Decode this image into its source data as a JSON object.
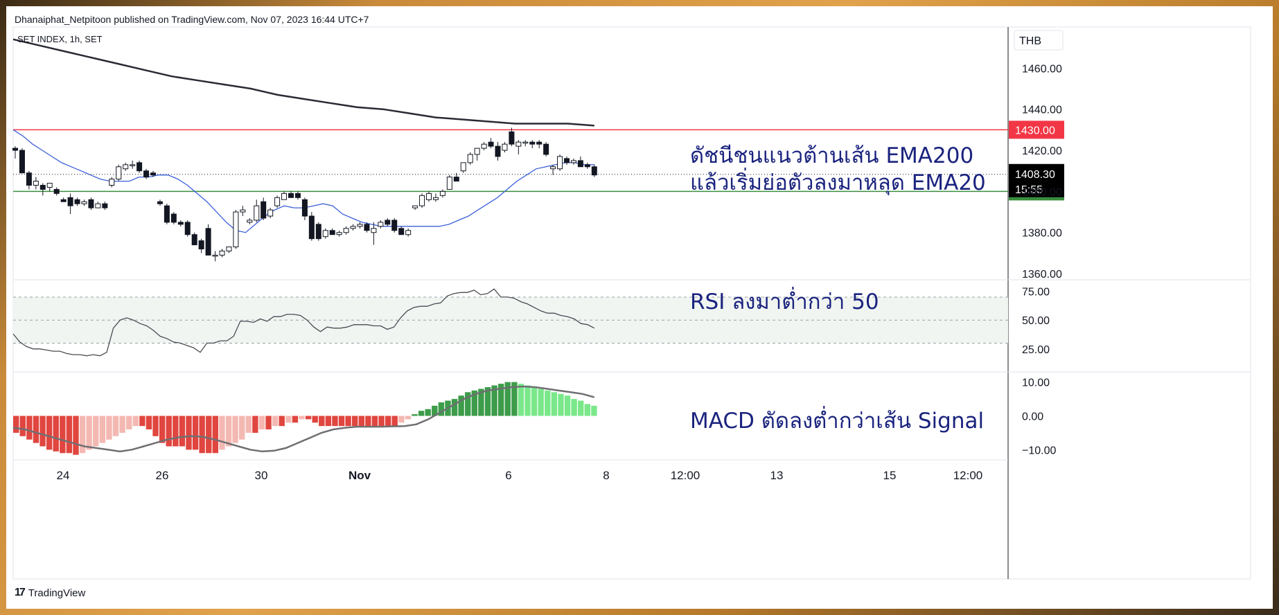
{
  "header": {
    "published": "Dhanaiphat_Netpitoon published on TradingView.com, Nov 07, 2023 16:44 UTC+7"
  },
  "footer": {
    "brand_mark": "17",
    "brand": "TradingView"
  },
  "chart_data": {
    "type": "candlestick",
    "symbol_label": "SET INDEX, 1h, SET",
    "currency": "THB",
    "x_ticks": [
      "24",
      "26",
      "30",
      "Nov",
      "6",
      "8",
      "12:00",
      "13",
      "15",
      "12:00"
    ],
    "price_pane": {
      "ylim": [
        1357,
        1480
      ],
      "y_ticks": [
        "1460.00",
        "1440.00",
        "1420.00",
        "1400.00",
        "1380.00",
        "1360.00"
      ],
      "horizontal_lines": [
        {
          "value": 1430,
          "label": "1430.00",
          "color": "#f23645"
        },
        {
          "value": 1400,
          "label": "1400.00",
          "color": "#388e3c"
        }
      ],
      "last_price": {
        "value": 1408.3,
        "label": "1408.30",
        "countdown": "15:55"
      },
      "candles": [
        {
          "o": 1421,
          "h": 1422,
          "l": 1416,
          "c": 1420
        },
        {
          "o": 1420,
          "h": 1421,
          "l": 1410,
          "c": 1409
        },
        {
          "o": 1409,
          "h": 1410,
          "l": 1401,
          "c": 1403
        },
        {
          "o": 1403,
          "h": 1407,
          "l": 1401,
          "c": 1405
        },
        {
          "o": 1403,
          "h": 1404,
          "l": 1398,
          "c": 1401
        },
        {
          "o": 1402,
          "h": 1404,
          "l": 1400,
          "c": 1404
        },
        {
          "o": 1401,
          "h": 1402,
          "l": 1398,
          "c": 1399
        },
        {
          "o": 1396,
          "h": 1397,
          "l": 1395,
          "c": 1395
        },
        {
          "o": 1397,
          "h": 1399,
          "l": 1389,
          "c": 1393
        },
        {
          "o": 1396,
          "h": 1397,
          "l": 1393,
          "c": 1394
        },
        {
          "o": 1394,
          "h": 1396,
          "l": 1393,
          "c": 1395
        },
        {
          "o": 1396,
          "h": 1397,
          "l": 1391,
          "c": 1392
        },
        {
          "o": 1392,
          "h": 1395,
          "l": 1392,
          "c": 1394
        },
        {
          "o": 1394,
          "h": 1395,
          "l": 1391,
          "c": 1392
        },
        {
          "o": 1403,
          "h": 1407,
          "l": 1402,
          "c": 1406
        },
        {
          "o": 1406,
          "h": 1413,
          "l": 1405,
          "c": 1412
        },
        {
          "o": 1411,
          "h": 1414,
          "l": 1410,
          "c": 1413
        },
        {
          "o": 1413,
          "h": 1415,
          "l": 1411,
          "c": 1413
        },
        {
          "o": 1414,
          "h": 1415,
          "l": 1409,
          "c": 1410
        },
        {
          "o": 1410,
          "h": 1411,
          "l": 1406,
          "c": 1407
        },
        {
          "o": 1409,
          "h": 1410,
          "l": 1407,
          "c": 1408
        },
        {
          "o": 1395,
          "h": 1396,
          "l": 1393,
          "c": 1394
        },
        {
          "o": 1393,
          "h": 1394,
          "l": 1384,
          "c": 1385
        },
        {
          "o": 1389,
          "h": 1390,
          "l": 1384,
          "c": 1385
        },
        {
          "o": 1385,
          "h": 1386,
          "l": 1383,
          "c": 1384
        },
        {
          "o": 1385,
          "h": 1386,
          "l": 1378,
          "c": 1379
        },
        {
          "o": 1379,
          "h": 1380,
          "l": 1374,
          "c": 1374
        },
        {
          "o": 1376,
          "h": 1377,
          "l": 1370,
          "c": 1372
        },
        {
          "o": 1382,
          "h": 1384,
          "l": 1369,
          "c": 1369
        },
        {
          "o": 1369,
          "h": 1371,
          "l": 1366,
          "c": 1369
        },
        {
          "o": 1369,
          "h": 1372,
          "l": 1368,
          "c": 1371
        },
        {
          "o": 1371,
          "h": 1373,
          "l": 1370,
          "c": 1373
        },
        {
          "o": 1373,
          "h": 1391,
          "l": 1372,
          "c": 1390
        },
        {
          "o": 1390,
          "h": 1393,
          "l": 1388,
          "c": 1391
        },
        {
          "o": 1385,
          "h": 1387,
          "l": 1384,
          "c": 1386
        },
        {
          "o": 1386,
          "h": 1396,
          "l": 1385,
          "c": 1393
        },
        {
          "o": 1395,
          "h": 1397,
          "l": 1386,
          "c": 1387
        },
        {
          "o": 1388,
          "h": 1392,
          "l": 1387,
          "c": 1391
        },
        {
          "o": 1393,
          "h": 1398,
          "l": 1392,
          "c": 1397
        },
        {
          "o": 1396,
          "h": 1400,
          "l": 1396,
          "c": 1399
        },
        {
          "o": 1399,
          "h": 1400,
          "l": 1397,
          "c": 1397
        },
        {
          "o": 1399,
          "h": 1400,
          "l": 1396,
          "c": 1397
        },
        {
          "o": 1396,
          "h": 1397,
          "l": 1386,
          "c": 1388
        },
        {
          "o": 1388,
          "h": 1390,
          "l": 1376,
          "c": 1377
        },
        {
          "o": 1384,
          "h": 1385,
          "l": 1376,
          "c": 1377
        },
        {
          "o": 1378,
          "h": 1382,
          "l": 1377,
          "c": 1381
        },
        {
          "o": 1381,
          "h": 1382,
          "l": 1379,
          "c": 1379
        },
        {
          "o": 1379,
          "h": 1381,
          "l": 1378,
          "c": 1380
        },
        {
          "o": 1380,
          "h": 1383,
          "l": 1379,
          "c": 1382
        },
        {
          "o": 1382,
          "h": 1384,
          "l": 1381,
          "c": 1383
        },
        {
          "o": 1383,
          "h": 1385,
          "l": 1382,
          "c": 1384
        },
        {
          "o": 1384,
          "h": 1385,
          "l": 1380,
          "c": 1381
        },
        {
          "o": 1380,
          "h": 1385,
          "l": 1374,
          "c": 1382
        },
        {
          "o": 1383,
          "h": 1386,
          "l": 1382,
          "c": 1385
        },
        {
          "o": 1386,
          "h": 1387,
          "l": 1383,
          "c": 1384
        },
        {
          "o": 1386,
          "h": 1387,
          "l": 1380,
          "c": 1381
        },
        {
          "o": 1382,
          "h": 1383,
          "l": 1379,
          "c": 1379
        },
        {
          "o": 1379,
          "h": 1382,
          "l": 1378,
          "c": 1381
        },
        {
          "o": 1392,
          "h": 1393,
          "l": 1391,
          "c": 1393
        },
        {
          "o": 1393,
          "h": 1399,
          "l": 1392,
          "c": 1398
        },
        {
          "o": 1396,
          "h": 1400,
          "l": 1395,
          "c": 1399
        },
        {
          "o": 1396,
          "h": 1399,
          "l": 1395,
          "c": 1397
        },
        {
          "o": 1398,
          "h": 1401,
          "l": 1397,
          "c": 1400
        },
        {
          "o": 1401,
          "h": 1408,
          "l": 1401,
          "c": 1407
        },
        {
          "o": 1407,
          "h": 1409,
          "l": 1405,
          "c": 1405
        },
        {
          "o": 1410,
          "h": 1414,
          "l": 1409,
          "c": 1414
        },
        {
          "o": 1414,
          "h": 1419,
          "l": 1413,
          "c": 1418
        },
        {
          "o": 1418,
          "h": 1421,
          "l": 1415,
          "c": 1421
        },
        {
          "o": 1421,
          "h": 1424,
          "l": 1420,
          "c": 1423
        },
        {
          "o": 1424,
          "h": 1426,
          "l": 1421,
          "c": 1422
        },
        {
          "o": 1422,
          "h": 1424,
          "l": 1415,
          "c": 1417
        },
        {
          "o": 1420,
          "h": 1424,
          "l": 1419,
          "c": 1423
        },
        {
          "o": 1429,
          "h": 1431,
          "l": 1422,
          "c": 1423
        },
        {
          "o": 1422,
          "h": 1425,
          "l": 1418,
          "c": 1424
        },
        {
          "o": 1424,
          "h": 1425,
          "l": 1422,
          "c": 1424
        },
        {
          "o": 1424,
          "h": 1425,
          "l": 1421,
          "c": 1423
        },
        {
          "o": 1424,
          "h": 1425,
          "l": 1421,
          "c": 1423
        },
        {
          "o": 1423,
          "h": 1424,
          "l": 1417,
          "c": 1418
        },
        {
          "o": 1411,
          "h": 1413,
          "l": 1408,
          "c": 1412
        },
        {
          "o": 1411,
          "h": 1418,
          "l": 1410,
          "c": 1417
        },
        {
          "o": 1416,
          "h": 1417,
          "l": 1413,
          "c": 1414
        },
        {
          "o": 1414,
          "h": 1416,
          "l": 1413,
          "c": 1415
        },
        {
          "o": 1415,
          "h": 1417,
          "l": 1412,
          "c": 1412
        },
        {
          "o": 1413,
          "h": 1414,
          "l": 1411,
          "c": 1412
        },
        {
          "o": 1412,
          "h": 1413,
          "l": 1407,
          "c": 1408
        }
      ],
      "ema20": [
        1430,
        1427,
        1423,
        1420,
        1417,
        1414,
        1412,
        1410,
        1408,
        1406,
        1405,
        1405,
        1405,
        1407,
        1407,
        1408,
        1408,
        1406,
        1403,
        1399,
        1395,
        1390,
        1385,
        1381,
        1380,
        1384,
        1388,
        1391,
        1393,
        1392,
        1392,
        1393,
        1394,
        1393,
        1389,
        1387,
        1385,
        1384,
        1383,
        1383,
        1383,
        1383,
        1383,
        1383,
        1383,
        1384,
        1386,
        1388,
        1391,
        1394,
        1397,
        1401,
        1405,
        1408,
        1411,
        1412,
        1413,
        1414,
        1414,
        1413,
        1413
      ],
      "ema200": [
        1474,
        1471,
        1468,
        1465,
        1462,
        1459,
        1456,
        1454,
        1452,
        1450,
        1447,
        1445,
        1443,
        1441,
        1440,
        1438,
        1436,
        1435,
        1434,
        1433,
        1433,
        1433,
        1432
      ]
    },
    "rsi_pane": {
      "ylim": [
        5,
        85
      ],
      "y_ticks": [
        "75.00",
        "50.00",
        "25.00"
      ],
      "band": [
        30,
        70
      ],
      "mid": 50,
      "values": [
        38,
        31,
        27,
        25,
        25,
        24,
        23,
        23,
        21,
        20,
        20,
        19,
        20,
        19,
        22,
        43,
        50,
        52,
        50,
        47,
        45,
        41,
        36,
        34,
        31,
        30,
        28,
        26,
        22,
        30,
        30,
        32,
        32,
        36,
        49,
        49,
        48,
        51,
        49,
        53,
        53,
        55,
        55,
        54,
        50,
        44,
        40,
        44,
        43,
        43,
        44,
        46,
        46,
        46,
        45,
        45,
        42,
        44,
        52,
        58,
        61,
        62,
        62,
        64,
        65,
        71,
        73,
        74,
        74,
        76,
        72,
        73,
        77,
        70,
        70,
        69,
        66,
        64,
        61,
        58,
        56,
        56,
        54,
        53,
        51,
        47,
        46,
        43
      ]
    },
    "macd_pane": {
      "ylim": [
        -13,
        13
      ],
      "y_ticks": [
        "10.00",
        "0.00",
        "−10.00"
      ],
      "histogram": [
        -5,
        -6,
        -7,
        -8,
        -9,
        -10,
        -10.5,
        -11,
        -11,
        -11.5,
        -11,
        -10,
        -9,
        -8,
        -7,
        -6,
        -5,
        -4,
        -3,
        -3,
        -4,
        -6,
        -8,
        -9,
        -9,
        -9,
        -10,
        -10,
        -11,
        -11,
        -11,
        -10,
        -9,
        -8,
        -7,
        -5,
        -5,
        -4,
        -4,
        -3,
        -3,
        -2,
        -2,
        -1,
        -1,
        -2,
        -3,
        -3,
        -3,
        -3,
        -3,
        -3,
        -3,
        -3,
        -3,
        -3,
        -3,
        -3,
        -2,
        -1,
        0.5,
        1.5,
        2,
        3,
        4,
        4.5,
        5,
        6,
        7,
        7.5,
        8,
        8.5,
        9,
        9.5,
        10,
        10,
        9.5,
        9,
        8.5,
        8,
        7.5,
        7,
        6.5,
        6,
        5,
        4.5,
        3.5,
        3
      ],
      "signal": [
        -3.5,
        -4,
        -5,
        -6,
        -7,
        -8,
        -9,
        -9.5,
        -10,
        -10.5,
        -10,
        -9,
        -8,
        -7,
        -6.3,
        -6,
        -6.2,
        -7,
        -8,
        -9,
        -10,
        -10.5,
        -10.3,
        -9.5,
        -8,
        -6.5,
        -5,
        -4,
        -3.5,
        -3.2,
        -3.2,
        -3.2,
        -3.1,
        -3,
        -2.5,
        -1,
        1,
        3,
        5,
        6.5,
        7.5,
        8,
        8.5,
        8.7,
        8.5,
        8,
        7.5,
        7,
        6.5,
        5.5
      ]
    }
  },
  "annotations": [
    "ดัชนีชนแนวต้านเส้น EMA200",
    "แล้วเริ่มย่อตัวลงมาหลุด EMA20",
    "RSI ลงมาต่ำกว่า 50",
    "MACD ตัดลงต่ำกว่าเส้น Signal"
  ]
}
